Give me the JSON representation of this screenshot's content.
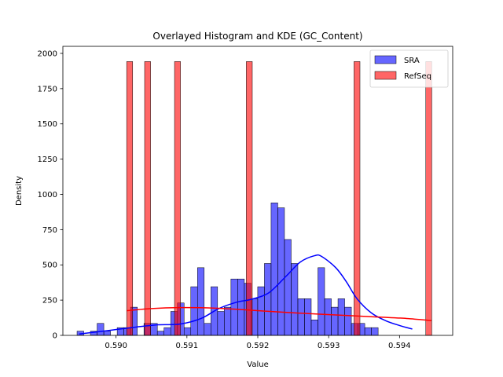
{
  "chart_data": {
    "type": "histogram",
    "title": "Overlayed Histogram and KDE (GC_Content)",
    "xlabel": "Value",
    "ylabel": "Density",
    "xlim": [
      0.58925,
      0.59475
    ],
    "ylim": [
      0,
      2050
    ],
    "xticks": [
      0.59,
      0.591,
      0.592,
      0.593,
      0.594
    ],
    "xtick_labels": [
      "0.590",
      "0.591",
      "0.592",
      "0.593",
      "0.594"
    ],
    "yticks": [
      0,
      250,
      500,
      750,
      1000,
      1250,
      1500,
      1750,
      2000
    ],
    "ytick_labels": [
      "0",
      "250",
      "500",
      "750",
      "1000",
      "1250",
      "1500",
      "1750",
      "2000"
    ],
    "legend": {
      "placement": "top-right",
      "entries": [
        "SRA",
        "RefSeq"
      ]
    },
    "colors": {
      "SRA": "#0000ff",
      "RefSeq": "#ff0000"
    },
    "series": [
      {
        "name": "SRA",
        "bin_start": 0.58945,
        "bin_width": 9.44e-05,
        "values": [
          30,
          0,
          30,
          85,
          30,
          0,
          55,
          55,
          200,
          0,
          85,
          85,
          30,
          55,
          170,
          230,
          55,
          345,
          480,
          85,
          345,
          170,
          200,
          400,
          400,
          370,
          260,
          345,
          510,
          940,
          905,
          680,
          510,
          260,
          260,
          110,
          480,
          260,
          200,
          260,
          200,
          85,
          85,
          55,
          55
        ],
        "kde": {
          "x": [
            0.58948,
            0.5899,
            0.5903,
            0.5906,
            0.5909,
            0.5912,
            0.59145,
            0.5917,
            0.5919,
            0.59215,
            0.5924,
            0.5926,
            0.5928,
            0.5929,
            0.5931,
            0.59325,
            0.5934,
            0.5936,
            0.5938,
            0.594,
            0.59418
          ],
          "y": [
            10,
            35,
            60,
            75,
            80,
            120,
            190,
            235,
            255,
            300,
            420,
            520,
            565,
            560,
            480,
            380,
            260,
            160,
            105,
            70,
            45
          ]
        }
      },
      {
        "name": "RefSeq",
        "bin_start": 0.59015,
        "bin_width": 8.44e-05,
        "values": [
          1942,
          0,
          0,
          1942,
          0,
          0,
          0,
          0,
          1942,
          0,
          0,
          0,
          0,
          0,
          0,
          0,
          0,
          0,
          0,
          0,
          1942,
          0,
          0,
          0,
          0,
          0,
          0,
          0,
          0,
          0,
          0,
          0,
          0,
          0,
          0,
          0,
          0,
          0,
          1942,
          0,
          0,
          0,
          0,
          0,
          0,
          0,
          0,
          0,
          0,
          0,
          1942
        ],
        "kde": {
          "x": [
            0.59015,
            0.5905,
            0.5909,
            0.5913,
            0.5917,
            0.5921,
            0.5925,
            0.5929,
            0.5933,
            0.5937,
            0.5941,
            0.59445
          ],
          "y": [
            175,
            190,
            197,
            195,
            185,
            172,
            160,
            150,
            140,
            130,
            120,
            105
          ]
        }
      }
    ]
  }
}
